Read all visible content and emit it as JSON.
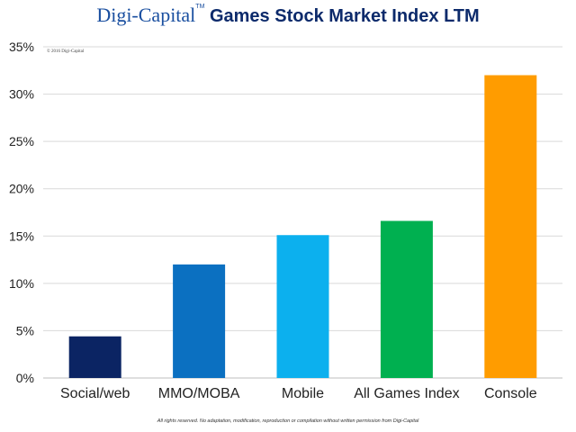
{
  "header": {
    "brand": "Digi-Capital",
    "trademark": "TM",
    "title_rest": "Games Stock Market Index LTM"
  },
  "copyright": "© 2016 Digi-Capital",
  "footer": "All rights reserved. No adaptation, modification, reproduction or compilation without written permission from Digi-Capital",
  "chart_data": {
    "type": "bar",
    "title": "Digi-Capital Games Stock Market Index LTM",
    "categories": [
      "Social/web",
      "MMO/MOBA",
      "Mobile",
      "All Games Index",
      "Console"
    ],
    "values": [
      4.4,
      12.0,
      15.1,
      16.6,
      32.0
    ],
    "colors": [
      "#0b2463",
      "#0b70c1",
      "#0cb0ee",
      "#00b050",
      "#ff9c00"
    ],
    "ylim": [
      0,
      35
    ],
    "yticks": [
      "0%",
      "5%",
      "10%",
      "15%",
      "20%",
      "25%",
      "30%",
      "35%"
    ],
    "ytick_values": [
      0,
      5,
      10,
      15,
      20,
      25,
      30,
      35
    ],
    "xlabel": "",
    "ylabel": "",
    "grid": true
  }
}
